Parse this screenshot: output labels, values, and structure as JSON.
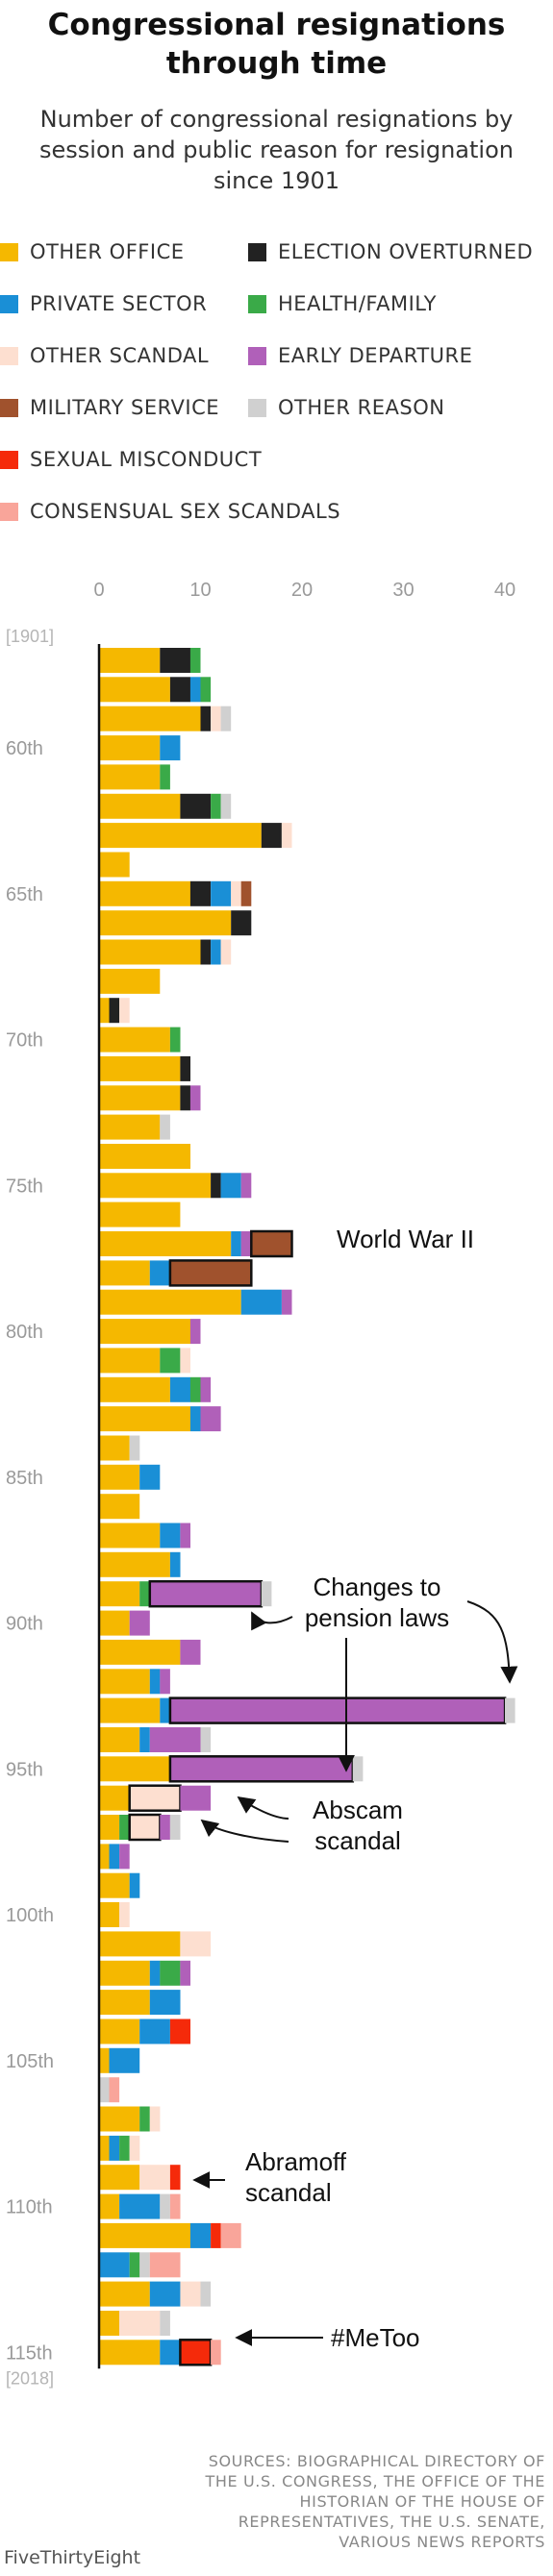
{
  "title": "Congressional resignations through time",
  "subtitle": "Number of congressional resignations by session and public reason for resignation since 1901",
  "legend": [
    {
      "label": "OTHER OFFICE",
      "color": "#f5b800"
    },
    {
      "label": "ELECTION OVERTURNED",
      "color": "#222222"
    },
    {
      "label": "PRIVATE SECTOR",
      "color": "#1a8fd6"
    },
    {
      "label": "HEALTH/FAMILY",
      "color": "#3aaa48"
    },
    {
      "label": "OTHER SCANDAL",
      "color": "#fddfd0"
    },
    {
      "label": "EARLY DEPARTURE",
      "color": "#b060b9"
    },
    {
      "label": "MILITARY SERVICE",
      "color": "#a0522d"
    },
    {
      "label": "OTHER REASON",
      "color": "#d0d0d0"
    },
    {
      "label": "SEXUAL MISCONDUCT",
      "color": "#f52a0a"
    },
    {
      "label": "CONSENSUAL SEX SCANDALS",
      "color": "#f9a59a"
    }
  ],
  "chart_data": {
    "type": "bar",
    "orientation": "horizontal",
    "stacked": true,
    "xlim": [
      0,
      42
    ],
    "x_ticks": [
      0,
      10,
      20,
      30,
      40
    ],
    "sessions": [
      57,
      58,
      59,
      60,
      61,
      62,
      63,
      64,
      65,
      66,
      67,
      68,
      69,
      70,
      71,
      72,
      73,
      74,
      75,
      76,
      77,
      78,
      79,
      80,
      81,
      82,
      83,
      84,
      85,
      86,
      87,
      88,
      89,
      90,
      91,
      92,
      93,
      94,
      95,
      96,
      97,
      98,
      99,
      100,
      101,
      102,
      103,
      104,
      105,
      106,
      107,
      108,
      109,
      110,
      111,
      112,
      113,
      114,
      115
    ],
    "row_labels": [
      {
        "session": 57,
        "label": "[1901]"
      },
      {
        "session": 60,
        "label": "60th"
      },
      {
        "session": 65,
        "label": "65th"
      },
      {
        "session": 70,
        "label": "70th"
      },
      {
        "session": 75,
        "label": "75th"
      },
      {
        "session": 80,
        "label": "80th"
      },
      {
        "session": 85,
        "label": "85th"
      },
      {
        "session": 90,
        "label": "90th"
      },
      {
        "session": 95,
        "label": "95th"
      },
      {
        "session": 100,
        "label": "100th"
      },
      {
        "session": 105,
        "label": "105th"
      },
      {
        "session": 110,
        "label": "110th"
      },
      {
        "session": 115,
        "label": "115th"
      },
      {
        "session": 115,
        "label": "[2018]"
      }
    ],
    "categories": [
      "OTHER OFFICE",
      "ELECTION OVERTURNED",
      "PRIVATE SECTOR",
      "HEALTH/FAMILY",
      "OTHER SCANDAL",
      "EARLY DEPARTURE",
      "MILITARY SERVICE",
      "OTHER REASON",
      "SEXUAL MISCONDUCT",
      "CONSENSUAL SEX SCANDALS"
    ],
    "values": [
      [
        6,
        3,
        0,
        1,
        0,
        0,
        0,
        0,
        0,
        0
      ],
      [
        7,
        2,
        1,
        1,
        0,
        0,
        0,
        0,
        0,
        0
      ],
      [
        10,
        1,
        0,
        0,
        1,
        0,
        0,
        1,
        0,
        0
      ],
      [
        6,
        0,
        2,
        0,
        0,
        0,
        0,
        0,
        0,
        0
      ],
      [
        6,
        0,
        0,
        1,
        0,
        0,
        0,
        0,
        0,
        0
      ],
      [
        8,
        3,
        0,
        1,
        0,
        0,
        0,
        1,
        0,
        0
      ],
      [
        16,
        2,
        0,
        0,
        1,
        0,
        0,
        0,
        0,
        0
      ],
      [
        3,
        0,
        0,
        0,
        0,
        0,
        0,
        0,
        0,
        0
      ],
      [
        9,
        2,
        2,
        0,
        1,
        0,
        1,
        0,
        0,
        0
      ],
      [
        13,
        2,
        0,
        0,
        0,
        0,
        0,
        0,
        0,
        0
      ],
      [
        10,
        1,
        1,
        0,
        1,
        0,
        0,
        0,
        0,
        0
      ],
      [
        6,
        0,
        0,
        0,
        0,
        0,
        0,
        0,
        0,
        0
      ],
      [
        1,
        1,
        0,
        0,
        1,
        0,
        0,
        0,
        0,
        0
      ],
      [
        7,
        0,
        0,
        1,
        0,
        0,
        0,
        0,
        0,
        0
      ],
      [
        8,
        1,
        0,
        0,
        0,
        0,
        0,
        0,
        0,
        0
      ],
      [
        8,
        1,
        0,
        0,
        0,
        1,
        0,
        0,
        0,
        0
      ],
      [
        6,
        0,
        0,
        0,
        0,
        0,
        0,
        1,
        0,
        0
      ],
      [
        9,
        0,
        0,
        0,
        0,
        0,
        0,
        0,
        0,
        0
      ],
      [
        11,
        1,
        2,
        0,
        0,
        1,
        0,
        0,
        0,
        0
      ],
      [
        8,
        0,
        0,
        0,
        0,
        0,
        0,
        0,
        0,
        0
      ],
      [
        13,
        0,
        1,
        0,
        0,
        1,
        4,
        0,
        0,
        0
      ],
      [
        5,
        0,
        2,
        0,
        0,
        0,
        8,
        0,
        0,
        0
      ],
      [
        14,
        0,
        4,
        0,
        0,
        1,
        0,
        0,
        0,
        0
      ],
      [
        9,
        0,
        0,
        0,
        0,
        1,
        0,
        0,
        0,
        0
      ],
      [
        6,
        0,
        0,
        2,
        1,
        0,
        0,
        0,
        0,
        0
      ],
      [
        7,
        0,
        2,
        1,
        0,
        1,
        0,
        0,
        0,
        0
      ],
      [
        9,
        0,
        1,
        0,
        0,
        2,
        0,
        0,
        0,
        0
      ],
      [
        3,
        0,
        0,
        0,
        0,
        0,
        0,
        1,
        0,
        0
      ],
      [
        4,
        0,
        2,
        0,
        0,
        0,
        0,
        0,
        0,
        0
      ],
      [
        4,
        0,
        0,
        0,
        0,
        0,
        0,
        0,
        0,
        0
      ],
      [
        6,
        0,
        2,
        0,
        0,
        1,
        0,
        0,
        0,
        0
      ],
      [
        7,
        0,
        1,
        0,
        0,
        0,
        0,
        0,
        0,
        0
      ],
      [
        4,
        0,
        0,
        1,
        0,
        11,
        0,
        1,
        0,
        0
      ],
      [
        3,
        0,
        0,
        0,
        0,
        2,
        0,
        0,
        0,
        0
      ],
      [
        8,
        0,
        0,
        0,
        0,
        2,
        0,
        0,
        0,
        0
      ],
      [
        5,
        0,
        1,
        0,
        0,
        1,
        0,
        0,
        0,
        0
      ],
      [
        6,
        0,
        1,
        0,
        0,
        33,
        0,
        1,
        0,
        0
      ],
      [
        4,
        0,
        1,
        0,
        0,
        5,
        0,
        1,
        0,
        0
      ],
      [
        7,
        0,
        0,
        0,
        0,
        18,
        0,
        1,
        0,
        0
      ],
      [
        3,
        0,
        0,
        0,
        5,
        3,
        0,
        0,
        0,
        0
      ],
      [
        2,
        0,
        0,
        1,
        3,
        1,
        0,
        1,
        0,
        0
      ],
      [
        1,
        0,
        1,
        0,
        0,
        1,
        0,
        0,
        0,
        0
      ],
      [
        3,
        0,
        1,
        0,
        0,
        0,
        0,
        0,
        0,
        0
      ],
      [
        2,
        0,
        0,
        0,
        1,
        0,
        0,
        0,
        0,
        0
      ],
      [
        8,
        0,
        0,
        0,
        3,
        0,
        0,
        0,
        0,
        0
      ],
      [
        5,
        0,
        1,
        2,
        0,
        1,
        0,
        0,
        0,
        0
      ],
      [
        5,
        0,
        3,
        0,
        0,
        0,
        0,
        0,
        0,
        0
      ],
      [
        4,
        0,
        3,
        0,
        0,
        0,
        0,
        0,
        2,
        0
      ],
      [
        1,
        0,
        3,
        0,
        0,
        0,
        0,
        0,
        0,
        0
      ],
      [
        0,
        0,
        0,
        0,
        0,
        0,
        0,
        1,
        0,
        1
      ],
      [
        4,
        0,
        0,
        1,
        1,
        0,
        0,
        0,
        0,
        0
      ],
      [
        1,
        0,
        1,
        1,
        1,
        0,
        0,
        0,
        0,
        0
      ],
      [
        4,
        0,
        0,
        0,
        3,
        0,
        0,
        0,
        1,
        0
      ],
      [
        2,
        0,
        4,
        0,
        0,
        0,
        0,
        1,
        0,
        1
      ],
      [
        9,
        0,
        2,
        0,
        0,
        0,
        0,
        0,
        1,
        2
      ],
      [
        0,
        0,
        3,
        1,
        0,
        0,
        0,
        1,
        0,
        3
      ],
      [
        5,
        0,
        3,
        0,
        2,
        0,
        0,
        1,
        0,
        0
      ],
      [
        2,
        0,
        0,
        0,
        4,
        0,
        0,
        1,
        0,
        0
      ],
      [
        6,
        0,
        2,
        0,
        0,
        0,
        0,
        0,
        3,
        1
      ]
    ],
    "highlighted": [
      {
        "session": 77,
        "category": "MILITARY SERVICE"
      },
      {
        "session": 78,
        "category": "MILITARY SERVICE"
      },
      {
        "session": 89,
        "category": "EARLY DEPARTURE"
      },
      {
        "session": 93,
        "category": "EARLY DEPARTURE"
      },
      {
        "session": 95,
        "category": "EARLY DEPARTURE"
      },
      {
        "session": 96,
        "category": "OTHER SCANDAL"
      },
      {
        "session": 97,
        "category": "OTHER SCANDAL"
      },
      {
        "session": 110,
        "category": "OTHER SCANDAL"
      },
      {
        "session": 115,
        "category": "SEXUAL MISCONDUCT"
      }
    ],
    "annotations": [
      {
        "text": "World War II",
        "session": 77
      },
      {
        "text": "Changes to pension laws",
        "sessions": [
          89,
          93,
          95
        ]
      },
      {
        "text": "Abscam scandal",
        "sessions": [
          96,
          97
        ]
      },
      {
        "text": "Abramoff scandal",
        "session": 110
      },
      {
        "text": "#MeToo",
        "session": 115
      }
    ]
  },
  "sources": "SOURCES: BIOGRAPHICAL DIRECTORY OF THE U.S. CONGRESS, THE OFFICE OF THE HISTORIAN OF THE HOUSE OF REPRESENTATIVES, THE U.S. SENATE, VARIOUS NEWS REPORTS",
  "brand": "FiveThirtyEight"
}
